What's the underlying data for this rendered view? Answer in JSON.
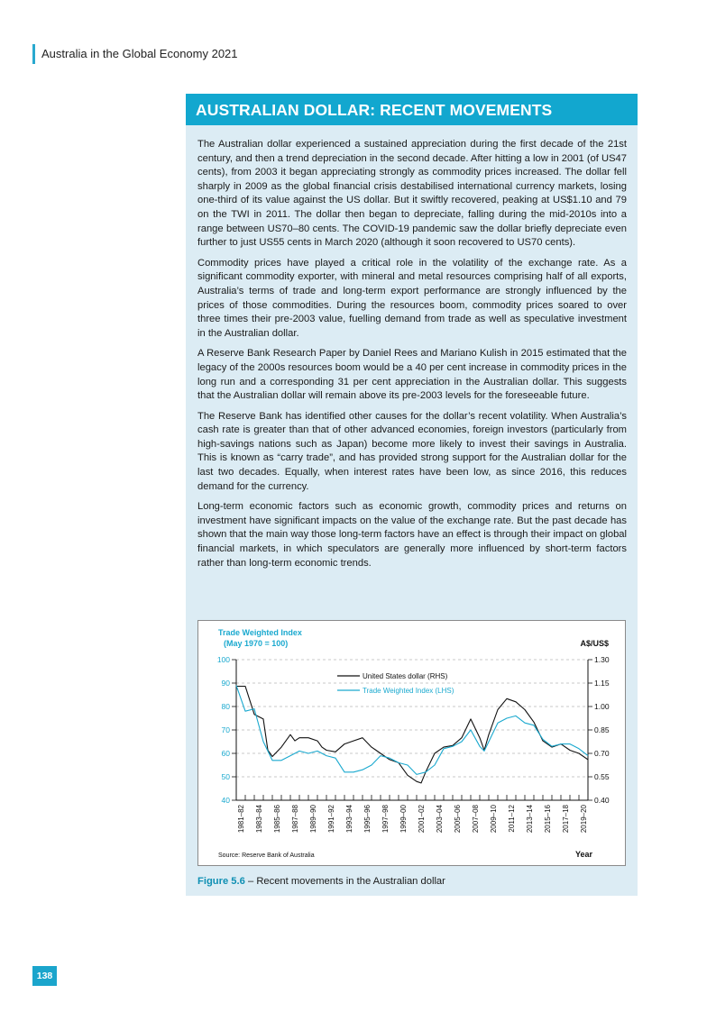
{
  "header": {
    "running_title": "Australia in the Global Economy 2021"
  },
  "box": {
    "title": "AUSTRALIAN DOLLAR: RECENT MOVEMENTS",
    "paragraphs": [
      "The Australian dollar experienced a sustained appreciation during the first decade of the 21st century, and then a trend depreciation in the second decade. After hitting a low in 2001 (of US47 cents), from 2003 it began appreciating strongly as commodity prices increased. The dollar fell sharply in 2009 as the global financial crisis destabilised international currency markets, losing one-third of its value against the US dollar. But it swiftly recovered, peaking at US$1.10 and 79 on the TWI in 2011. The dollar then began to depreciate, falling during the mid-2010s into a range between US70–80 cents. The COVID-19 pandemic saw the dollar briefly depreciate even further to just US55 cents in March 2020 (although it soon recovered to US70 cents).",
      "Commodity prices have played a critical role in the volatility of the exchange rate. As a significant commodity exporter, with mineral and metal resources comprising half of all exports, Australia’s terms of trade and long-term export performance are strongly influenced by the prices of those commodities. During the resources boom, commodity prices soared to over three times their pre-2003 value, fuelling demand from trade as well as speculative investment in the Australian dollar.",
      "A Reserve Bank Research Paper by Daniel Rees and Mariano Kulish in 2015 estimated that the legacy of the 2000s resources boom would be a 40 per cent increase in commodity prices in the long run and a corresponding 31 per cent appreciation in the Australian dollar. This suggests that the Australian dollar will remain above its pre-2003 levels for the foreseeable future.",
      "The Reserve Bank has identified other causes for the dollar’s recent volatility. When Australia’s cash rate is greater than that of other advanced economies, foreign investors (particularly from high-savings nations such as Japan) become more likely to invest their savings in Australia. This is known as “carry trade”, and has provided strong support for the Australian dollar for the last two decades. Equally, when interest rates have been low, as since 2016, this reduces demand for the currency.",
      "Long-term economic factors such as economic growth, commodity prices and returns on investment have significant impacts on the value of the exchange rate. But the past decade has shown that the main way those long-term factors have an effect is through their impact on global financial markets, in which speculators are generally more influenced by short-term factors rather than long-term economic trends."
    ]
  },
  "chart_data": {
    "type": "line",
    "ylabel_left_line1": "Trade Weighted Index",
    "ylabel_left_line2": "(May 1970 = 100)",
    "ylabel_right": "A$/US$",
    "xlabel": "Year",
    "source": "Source: Reserve Bank of Australia",
    "yticks_left": [
      "100",
      "90",
      "80",
      "70",
      "60",
      "50",
      "40"
    ],
    "yticks_right": [
      "1.30",
      "1.15",
      "1.00",
      "0.85",
      "0.70",
      "0.55",
      "0.40"
    ],
    "ylim_left": [
      40,
      100
    ],
    "ylim_right": [
      0.4,
      1.3
    ],
    "xlim": [
      1981,
      2020
    ],
    "xtick_labels": [
      "1981–82",
      "1983–84",
      "1985–86",
      "1987–88",
      "1989–90",
      "1991–92",
      "1993–94",
      "1995–96",
      "1997–98",
      "1999–00",
      "2001–02",
      "2003–04",
      "2005–06",
      "2007–08",
      "2009–10",
      "2011–12",
      "2013–14",
      "2015–16",
      "2017–18",
      "2019–20"
    ],
    "grid": "horizontal dashed",
    "legend_position": "top-center",
    "series": [
      {
        "name": "United States dollar (RHS)",
        "axis": "right",
        "color": "#111111",
        "x": [
          1981.0,
          1982.0,
          1983.0,
          1984.0,
          1984.5,
          1985.0,
          1986.0,
          1987.0,
          1987.5,
          1988.0,
          1989.0,
          1990.0,
          1990.5,
          1991.0,
          1992.0,
          1993.0,
          1994.0,
          1995.0,
          1996.0,
          1996.5,
          1997.0,
          1998.0,
          1999.0,
          2000.0,
          2001.0,
          2001.5,
          2002.0,
          2003.0,
          2004.0,
          2005.0,
          2006.0,
          2007.0,
          2008.0,
          2008.5,
          2009.0,
          2010.0,
          2011.0,
          2012.0,
          2013.0,
          2014.0,
          2015.0,
          2016.0,
          2017.0,
          2018.0,
          2019.0,
          2020.0
        ],
        "y": [
          1.13,
          1.13,
          0.95,
          0.92,
          0.72,
          0.68,
          0.74,
          0.82,
          0.78,
          0.8,
          0.8,
          0.78,
          0.74,
          0.72,
          0.71,
          0.76,
          0.78,
          0.8,
          0.74,
          0.72,
          0.7,
          0.66,
          0.64,
          0.56,
          0.52,
          0.51,
          0.58,
          0.7,
          0.74,
          0.75,
          0.8,
          0.92,
          0.8,
          0.72,
          0.82,
          0.98,
          1.05,
          1.03,
          0.98,
          0.9,
          0.78,
          0.74,
          0.76,
          0.72,
          0.7,
          0.66
        ]
      },
      {
        "name": "Trade Weighted Index (LHS)",
        "axis": "left",
        "color": "#1aa9cf",
        "x": [
          1981.0,
          1982.0,
          1983.0,
          1984.0,
          1985.0,
          1986.0,
          1987.0,
          1988.0,
          1989.0,
          1990.0,
          1991.0,
          1992.0,
          1993.0,
          1994.0,
          1995.0,
          1996.0,
          1997.0,
          1998.0,
          1999.0,
          2000.0,
          2001.0,
          2002.0,
          2003.0,
          2004.0,
          2005.0,
          2006.0,
          2007.0,
          2008.0,
          2008.5,
          2009.0,
          2010.0,
          2011.0,
          2012.0,
          2013.0,
          2014.0,
          2015.0,
          2016.0,
          2017.0,
          2018.0,
          2019.0,
          2020.0
        ],
        "y": [
          89,
          78,
          79,
          65,
          57,
          57,
          59,
          61,
          60,
          61,
          59,
          58,
          52,
          52,
          53,
          55,
          59,
          58,
          56,
          55,
          51,
          52,
          55,
          62,
          63,
          65,
          70,
          63,
          61,
          65,
          73,
          75,
          76,
          73,
          72,
          66,
          63,
          64,
          64,
          62,
          59
        ]
      }
    ]
  },
  "caption": {
    "figure_number": "Figure 5.6",
    "separator": " – ",
    "text": "Recent movements in the Australian dollar"
  },
  "footer": {
    "page_number": "138"
  }
}
